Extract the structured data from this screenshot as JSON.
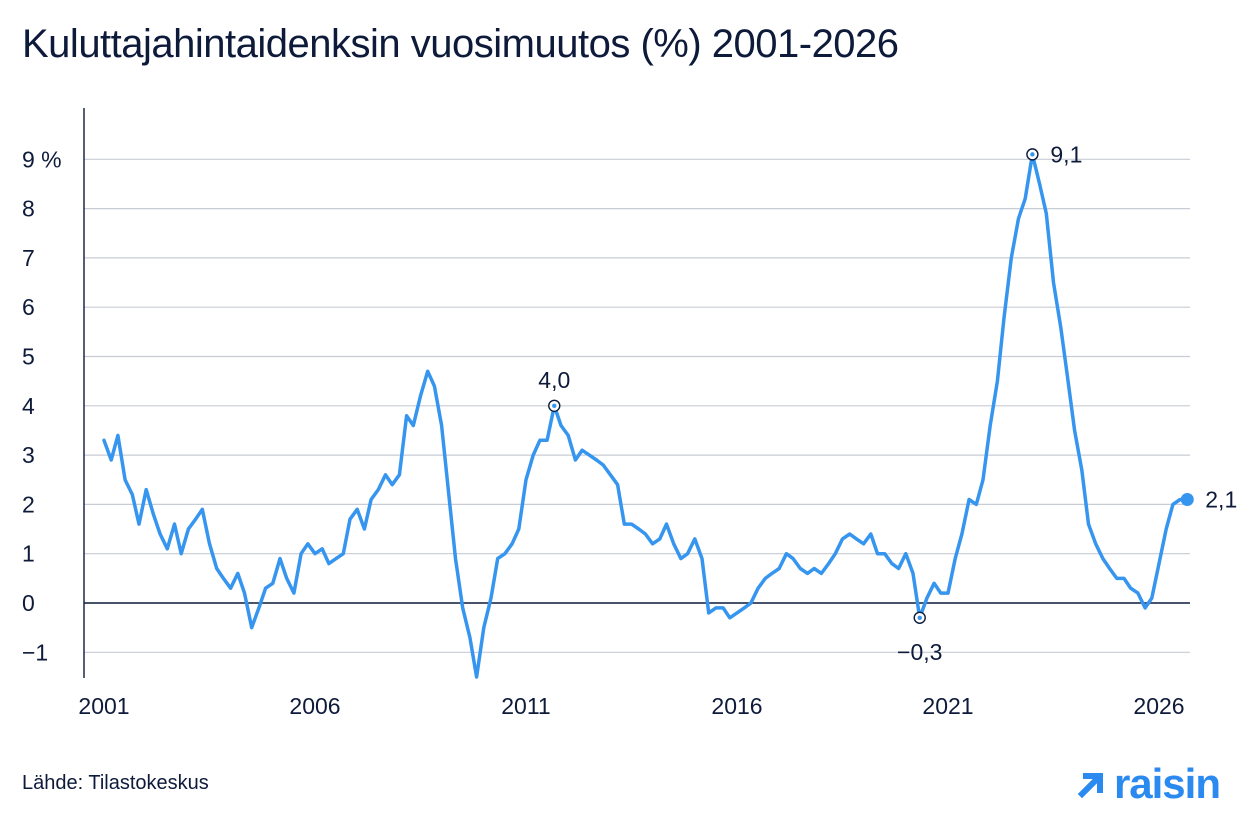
{
  "title": "Kuluttajahintaidenksin vuosimuutos (%) 2001-2026",
  "source": "Lähde: Tilastokeskus",
  "brand": {
    "name": "raisin",
    "icon": "arrow-up-right-icon",
    "color": "#2b8af0"
  },
  "colors": {
    "line": "#3595ef",
    "grid": "#c8ccd6",
    "axis": "#0d1a3a",
    "text": "#0d1a3a"
  },
  "chart_data": {
    "type": "line",
    "title": "Kuluttajahintaidenksin vuosimuutos (%) 2001-2026",
    "xlabel": "",
    "ylabel": "",
    "xlim": [
      2001,
      2027
    ],
    "ylim": [
      -1.5,
      9.6
    ],
    "x_ticks": [
      2001,
      2006,
      2011,
      2016,
      2021,
      2026
    ],
    "x_tick_labels": [
      "2001",
      "2006",
      "2011",
      "2016",
      "2021",
      "2026"
    ],
    "y_ticks": [
      -1,
      0,
      1,
      2,
      3,
      4,
      5,
      6,
      7,
      8,
      9
    ],
    "y_tick_labels": [
      "−1",
      "0",
      "1",
      "2",
      "3",
      "4",
      "5",
      "6",
      "7",
      "8",
      "9 %"
    ],
    "grid": true,
    "annotations": [
      {
        "x": 2011.67,
        "y": 4.0,
        "label": "4,0",
        "position": "above"
      },
      {
        "x": 2020.33,
        "y": -0.3,
        "label": "−0,3",
        "position": "below"
      },
      {
        "x": 2023.0,
        "y": 9.1,
        "label": "9,1",
        "position": "right"
      },
      {
        "x": 2026.67,
        "y": 2.1,
        "label": "2,1",
        "position": "right",
        "marker": "filled"
      }
    ],
    "series": [
      {
        "points": [
          [
            2001.0,
            3.3
          ],
          [
            2001.17,
            2.9
          ],
          [
            2001.33,
            3.4
          ],
          [
            2001.5,
            2.5
          ],
          [
            2001.67,
            2.2
          ],
          [
            2001.83,
            1.6
          ],
          [
            2002.0,
            2.3
          ],
          [
            2002.17,
            1.8
          ],
          [
            2002.33,
            1.4
          ],
          [
            2002.5,
            1.1
          ],
          [
            2002.67,
            1.6
          ],
          [
            2002.83,
            1.0
          ],
          [
            2003.0,
            1.5
          ],
          [
            2003.17,
            1.7
          ],
          [
            2003.33,
            1.9
          ],
          [
            2003.5,
            1.2
          ],
          [
            2003.67,
            0.7
          ],
          [
            2003.83,
            0.5
          ],
          [
            2004.0,
            0.3
          ],
          [
            2004.17,
            0.6
          ],
          [
            2004.33,
            0.2
          ],
          [
            2004.5,
            -0.5
          ],
          [
            2004.67,
            -0.1
          ],
          [
            2004.83,
            0.3
          ],
          [
            2005.0,
            0.4
          ],
          [
            2005.17,
            0.9
          ],
          [
            2005.33,
            0.5
          ],
          [
            2005.5,
            0.2
          ],
          [
            2005.67,
            1.0
          ],
          [
            2005.83,
            1.2
          ],
          [
            2006.0,
            1.0
          ],
          [
            2006.17,
            1.1
          ],
          [
            2006.33,
            0.8
          ],
          [
            2006.5,
            0.9
          ],
          [
            2006.67,
            1.0
          ],
          [
            2006.83,
            1.7
          ],
          [
            2007.0,
            1.9
          ],
          [
            2007.17,
            1.5
          ],
          [
            2007.33,
            2.1
          ],
          [
            2007.5,
            2.3
          ],
          [
            2007.67,
            2.6
          ],
          [
            2007.83,
            2.4
          ],
          [
            2008.0,
            2.6
          ],
          [
            2008.17,
            3.8
          ],
          [
            2008.33,
            3.6
          ],
          [
            2008.5,
            4.2
          ],
          [
            2008.67,
            4.7
          ],
          [
            2008.83,
            4.4
          ],
          [
            2009.0,
            3.6
          ],
          [
            2009.17,
            2.2
          ],
          [
            2009.33,
            0.9
          ],
          [
            2009.5,
            -0.1
          ],
          [
            2009.67,
            -0.7
          ],
          [
            2009.83,
            -1.5
          ],
          [
            2010.0,
            -0.5
          ],
          [
            2010.17,
            0.1
          ],
          [
            2010.33,
            0.9
          ],
          [
            2010.5,
            1.0
          ],
          [
            2010.67,
            1.2
          ],
          [
            2010.83,
            1.5
          ],
          [
            2011.0,
            2.5
          ],
          [
            2011.17,
            3.0
          ],
          [
            2011.33,
            3.3
          ],
          [
            2011.5,
            3.3
          ],
          [
            2011.67,
            4.0
          ],
          [
            2011.83,
            3.6
          ],
          [
            2012.0,
            3.4
          ],
          [
            2012.17,
            2.9
          ],
          [
            2012.33,
            3.1
          ],
          [
            2012.5,
            3.0
          ],
          [
            2012.67,
            2.9
          ],
          [
            2012.83,
            2.8
          ],
          [
            2013.0,
            2.6
          ],
          [
            2013.17,
            2.4
          ],
          [
            2013.33,
            1.6
          ],
          [
            2013.5,
            1.6
          ],
          [
            2013.67,
            1.5
          ],
          [
            2013.83,
            1.4
          ],
          [
            2014.0,
            1.2
          ],
          [
            2014.17,
            1.3
          ],
          [
            2014.33,
            1.6
          ],
          [
            2014.5,
            1.2
          ],
          [
            2014.67,
            0.9
          ],
          [
            2014.83,
            1.0
          ],
          [
            2015.0,
            1.3
          ],
          [
            2015.17,
            0.9
          ],
          [
            2015.33,
            -0.2
          ],
          [
            2015.5,
            -0.1
          ],
          [
            2015.67,
            -0.1
          ],
          [
            2015.83,
            -0.3
          ],
          [
            2016.0,
            -0.2
          ],
          [
            2016.17,
            -0.1
          ],
          [
            2016.33,
            0.0
          ],
          [
            2016.5,
            0.3
          ],
          [
            2016.67,
            0.5
          ],
          [
            2016.83,
            0.6
          ],
          [
            2017.0,
            0.7
          ],
          [
            2017.17,
            1.0
          ],
          [
            2017.33,
            0.9
          ],
          [
            2017.5,
            0.7
          ],
          [
            2017.67,
            0.6
          ],
          [
            2017.83,
            0.7
          ],
          [
            2018.0,
            0.6
          ],
          [
            2018.17,
            0.8
          ],
          [
            2018.33,
            1.0
          ],
          [
            2018.5,
            1.3
          ],
          [
            2018.67,
            1.4
          ],
          [
            2018.83,
            1.3
          ],
          [
            2019.0,
            1.2
          ],
          [
            2019.17,
            1.4
          ],
          [
            2019.33,
            1.0
          ],
          [
            2019.5,
            1.0
          ],
          [
            2019.67,
            0.8
          ],
          [
            2019.83,
            0.7
          ],
          [
            2020.0,
            1.0
          ],
          [
            2020.17,
            0.6
          ],
          [
            2020.33,
            -0.3
          ],
          [
            2020.5,
            0.1
          ],
          [
            2020.67,
            0.4
          ],
          [
            2020.83,
            0.2
          ],
          [
            2021.0,
            0.2
          ],
          [
            2021.17,
            0.9
          ],
          [
            2021.33,
            1.4
          ],
          [
            2021.5,
            2.1
          ],
          [
            2021.67,
            2.0
          ],
          [
            2021.83,
            2.5
          ],
          [
            2022.0,
            3.6
          ],
          [
            2022.17,
            4.5
          ],
          [
            2022.33,
            5.8
          ],
          [
            2022.5,
            7.0
          ],
          [
            2022.67,
            7.8
          ],
          [
            2022.83,
            8.2
          ],
          [
            2023.0,
            9.1
          ],
          [
            2023.17,
            8.5
          ],
          [
            2023.33,
            7.9
          ],
          [
            2023.5,
            6.5
          ],
          [
            2023.67,
            5.6
          ],
          [
            2023.83,
            4.6
          ],
          [
            2024.0,
            3.5
          ],
          [
            2024.17,
            2.7
          ],
          [
            2024.33,
            1.6
          ],
          [
            2024.5,
            1.2
          ],
          [
            2024.67,
            0.9
          ],
          [
            2024.83,
            0.7
          ],
          [
            2025.0,
            0.5
          ],
          [
            2025.17,
            0.5
          ],
          [
            2025.33,
            0.3
          ],
          [
            2025.5,
            0.2
          ],
          [
            2025.67,
            -0.1
          ],
          [
            2025.83,
            0.1
          ],
          [
            2026.0,
            0.8
          ],
          [
            2026.17,
            1.5
          ],
          [
            2026.33,
            2.0
          ],
          [
            2026.5,
            2.1
          ],
          [
            2026.67,
            2.1
          ]
        ]
      }
    ]
  }
}
